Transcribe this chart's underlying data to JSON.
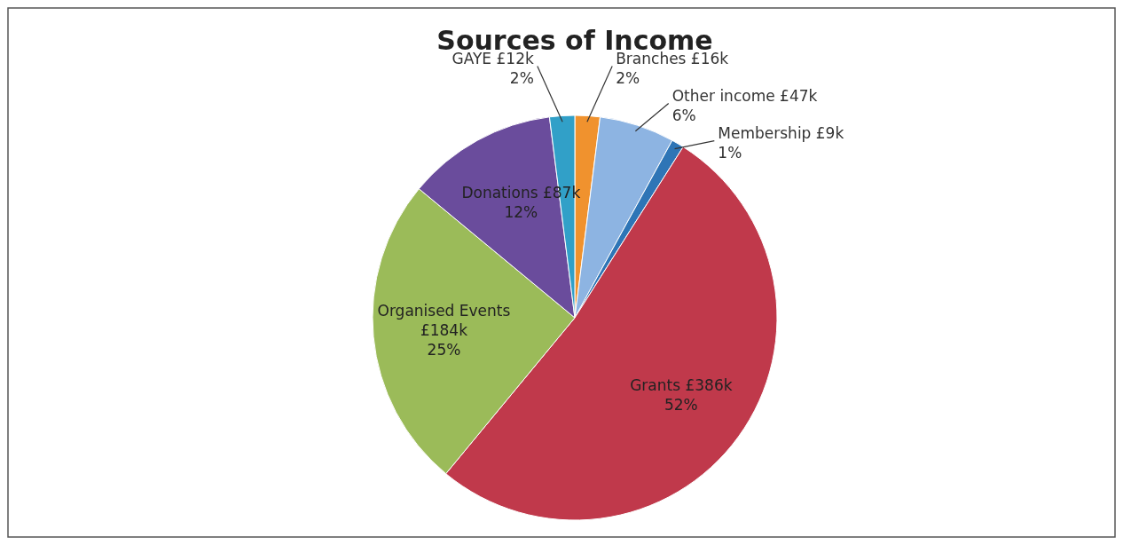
{
  "chart_data": {
    "type": "pie",
    "title": "Sources of Income",
    "categories": [
      "Branches",
      "Other income",
      "Membership",
      "Grants",
      "Organised Events",
      "Donations",
      "GAYE"
    ],
    "values": [
      2,
      6,
      1,
      52,
      25,
      12,
      2
    ],
    "colors": [
      "#f0922e",
      "#8db4e2",
      "#2e75b6",
      "#c0394b",
      "#9bbb59",
      "#6a4c9c",
      "#31a0c8"
    ],
    "value_labels": [
      "£16k\n2%",
      "£47k\n6%",
      "£9k\n1%",
      "£386k\n52%",
      "£184k\n25%",
      "£87k\n12%",
      "£12k\n2%"
    ],
    "data_labels": true
  }
}
